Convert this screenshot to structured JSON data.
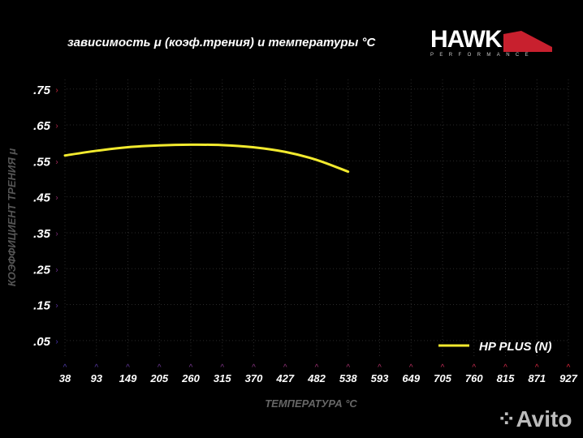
{
  "chart_data": {
    "type": "line",
    "title": "зависимость μ (коэф.трения) и температуры °C",
    "xlabel": "ТЕМПЕРАТУРА °C",
    "ylabel": "КОЭФФИЦИЕНТ ТРЕНИЯ μ",
    "x_ticks": [
      "38",
      "93",
      "149",
      "205",
      "260",
      "315",
      "370",
      "427",
      "482",
      "538",
      "593",
      "649",
      "705",
      "760",
      "815",
      "871",
      "927"
    ],
    "y_ticks": [
      ".75",
      ".65",
      ".55",
      ".45",
      ".35",
      ".25",
      ".15",
      ".05"
    ],
    "xlim": [
      38,
      927
    ],
    "ylim": [
      0,
      0.78
    ],
    "grid": true,
    "legend_position": "bottom-right",
    "series": [
      {
        "name": "HP PLUS (N)",
        "color": "#f2ea2e",
        "x": [
          38,
          93,
          149,
          205,
          260,
          315,
          370,
          427,
          482,
          538
        ],
        "y": [
          0.565,
          0.578,
          0.588,
          0.593,
          0.595,
          0.594,
          0.588,
          0.575,
          0.553,
          0.52
        ]
      }
    ]
  },
  "logo": {
    "name": "HAWK",
    "tagline": "PERFORMANCE"
  },
  "watermark": "Avito"
}
